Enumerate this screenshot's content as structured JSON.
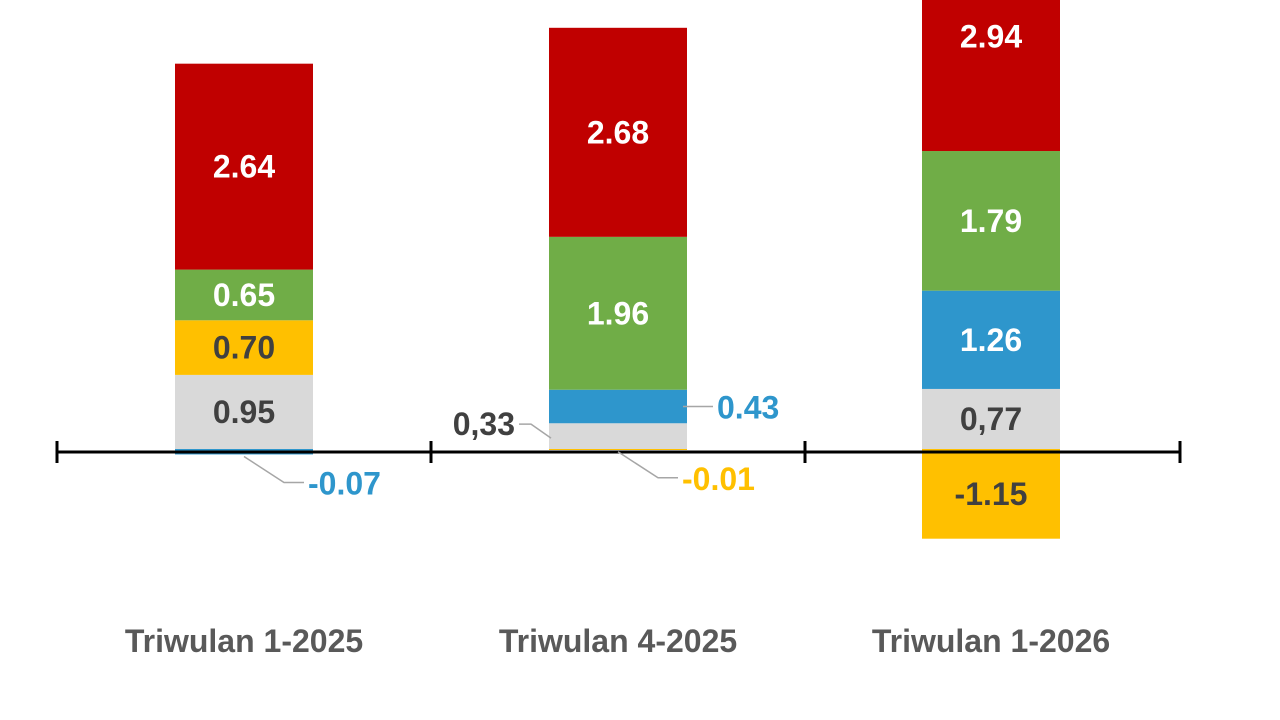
{
  "chart_data": {
    "type": "bar",
    "stacked": true,
    "title": "",
    "xlabel": "",
    "ylabel": "",
    "grid": false,
    "legend": "none",
    "categories": [
      "Triwulan 1-2025",
      "Triwulan 4-2025",
      "Triwulan 1-2026"
    ],
    "series": [
      {
        "color": "#c00000",
        "values": [
          2.64,
          2.68,
          2.94
        ],
        "labels": [
          "2.64",
          "2.68",
          "2.94"
        ]
      },
      {
        "color": "#70ad47",
        "values": [
          0.65,
          1.96,
          1.79
        ],
        "labels": [
          "0.65",
          "1.96",
          "1.79"
        ]
      },
      {
        "color": "#ffc000",
        "values": [
          0.7,
          -0.01,
          -1.15
        ],
        "labels": [
          "0.70",
          "-0.01",
          "-1.15"
        ]
      },
      {
        "color": "#2e96cc",
        "values": [
          -0.07,
          0.43,
          1.26
        ],
        "labels": [
          "-0.07",
          "0.43",
          "1.26"
        ]
      },
      {
        "color": "#d9d9d9",
        "values": [
          0.95,
          0.33,
          0.77
        ],
        "labels": [
          "0.95",
          "0,33",
          "0,77"
        ]
      }
    ],
    "stack_order": [
      [
        4,
        2,
        1,
        0,
        3
      ],
      [
        4,
        3,
        1,
        0,
        2
      ],
      [
        4,
        3,
        1,
        0,
        2
      ]
    ],
    "label_colors": {
      "on_dark": "#ffffff",
      "on_light": "#404040",
      "outside_text": "#404040"
    }
  }
}
